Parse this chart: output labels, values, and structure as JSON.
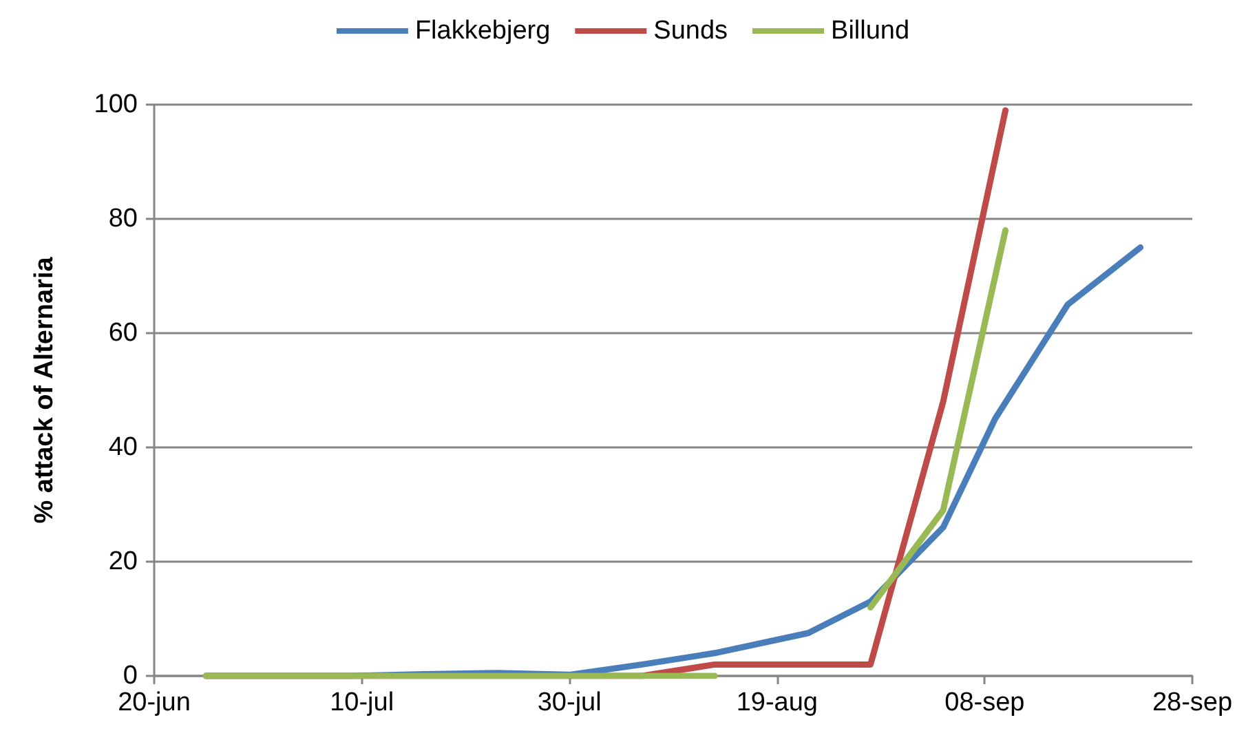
{
  "chart_data": {
    "type": "line",
    "ylabel": "% attack of Alternaria",
    "legend": "top",
    "grid": "y",
    "marker": "none",
    "line_style": "solid",
    "xlim": [
      "--06-20",
      "--09-28"
    ],
    "xticks": [
      {
        "value": "--06-20",
        "label": "20-jun"
      },
      {
        "value": "--07-10",
        "label": "10-jul"
      },
      {
        "value": "--07-30",
        "label": "30-jul"
      },
      {
        "value": "--08-19",
        "label": "19-aug"
      },
      {
        "value": "--09-08",
        "label": "08-sep"
      },
      {
        "value": "--09-28",
        "label": "28-sep"
      }
    ],
    "ylim": [
      0,
      100
    ],
    "yticks": [
      0,
      20,
      40,
      60,
      80,
      100
    ],
    "series": [
      {
        "name": "Flakkebjerg",
        "color": "#4a7ebb",
        "x": [
          "--06-25",
          "--07-02",
          "--07-09",
          "--07-16",
          "--07-23",
          "--07-30",
          "--08-06",
          "--08-13",
          "--08-22",
          "--08-28",
          "--09-04",
          "--09-09",
          "--09-16",
          "--09-23"
        ],
        "values": [
          0,
          0,
          0,
          0.3,
          0.5,
          0.2,
          2,
          4,
          7.5,
          13,
          26,
          45,
          65,
          75
        ]
      },
      {
        "name": "Sunds",
        "color": "#be4b48",
        "x": [
          "--06-25",
          "--07-02",
          "--07-09",
          "--07-16",
          "--07-23",
          "--07-30",
          "--08-06",
          "--08-13",
          "--08-28",
          "--09-04",
          "--09-10"
        ],
        "values": [
          0,
          0,
          0,
          0,
          0,
          0,
          0,
          2,
          2,
          48,
          99
        ]
      },
      {
        "name": "Billund",
        "color": "#98b954",
        "x": [
          "--06-25",
          "--07-02",
          "--07-09",
          "--07-16",
          "--07-23",
          "--07-30",
          "--08-06",
          "--08-13",
          "--08-21",
          "--08-28",
          "--09-04",
          "--09-10"
        ],
        "values": [
          0,
          0,
          0,
          0,
          0,
          0,
          0,
          0,
          null,
          12,
          29,
          78
        ]
      }
    ]
  }
}
